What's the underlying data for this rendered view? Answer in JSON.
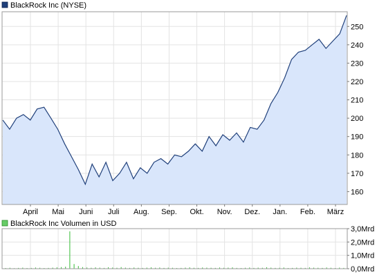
{
  "colors": {
    "price_line": "#1f3f7a",
    "price_fill": "#d9e6fb",
    "volume_bar": "#33bb33",
    "grid": "#e3e3e3",
    "frame": "#9a9a9a"
  },
  "chart_data": [
    {
      "type": "area",
      "title": "BlackRock Inc (NYSE)",
      "legend_icon": "navy-square-icon",
      "legend_position": "top-left",
      "xlabel": "",
      "ylabel": "",
      "x_tick_labels": [
        "April",
        "Mai",
        "Juni",
        "Juli",
        "Aug.",
        "Sep.",
        "Okt.",
        "Nov.",
        "Dez.",
        "Jan.",
        "Feb.",
        "März"
      ],
      "y_ticks": [
        160,
        170,
        180,
        190,
        200,
        210,
        220,
        230,
        240,
        250
      ],
      "y_tick_labels": [
        "160",
        "170",
        "180",
        "190",
        "200",
        "210",
        "220",
        "230",
        "240",
        "250"
      ],
      "ylim": [
        153,
        258
      ],
      "grid": true,
      "x": [
        "Mär",
        "Mär",
        "Mär",
        "Apr",
        "Apr",
        "Apr",
        "Apr",
        "Mai",
        "Mai",
        "Mai",
        "Mai",
        "Jun",
        "Jun",
        "Jun",
        "Jun",
        "Jul",
        "Jul",
        "Jul",
        "Jul",
        "Jul",
        "Aug",
        "Aug",
        "Aug",
        "Aug",
        "Sep",
        "Sep",
        "Sep",
        "Sep",
        "Okt",
        "Okt",
        "Okt",
        "Okt",
        "Nov",
        "Nov",
        "Nov",
        "Nov",
        "Dez",
        "Dez",
        "Dez",
        "Dez",
        "Jan",
        "Jan",
        "Jan",
        "Jan",
        "Feb",
        "Feb",
        "Feb",
        "Feb",
        "Mär",
        "Mär",
        "Mär"
      ],
      "series": [
        {
          "values": [
            199,
            194,
            200,
            202,
            199,
            205,
            206,
            200,
            194,
            186,
            179,
            172,
            164,
            175,
            168,
            176,
            166,
            170,
            176,
            167,
            173,
            170,
            176,
            178,
            175,
            180,
            179,
            182,
            186,
            182,
            190,
            185,
            191,
            188,
            192,
            187,
            195,
            194,
            199,
            208,
            214,
            222,
            232,
            236,
            237,
            240,
            243,
            238,
            242,
            246,
            256
          ]
        }
      ]
    },
    {
      "type": "bar",
      "title": "BlackRock Inc Volumen in USD",
      "legend_icon": "green-square-icon",
      "legend_position": "top-left",
      "y_ticks": [
        0,
        1,
        2,
        3
      ],
      "y_tick_labels": [
        "0,0Mrd",
        "1,0Mrd",
        "2,0Mrd",
        "3,0Mrd"
      ],
      "ylim": [
        0,
        3
      ],
      "grid": true,
      "series": [
        {
          "values": [
            0.05,
            0.07,
            0.04,
            0.06,
            0.08,
            0.05,
            0.06,
            0.09,
            0.07,
            0.05,
            0.06,
            0.08,
            0.1,
            0.12,
            0.15,
            2.8,
            0.35,
            0.2,
            0.12,
            0.09,
            0.07,
            0.1,
            0.08,
            0.06,
            0.11,
            0.09,
            0.07,
            0.12,
            0.08,
            0.06,
            0.09,
            0.07,
            0.06,
            0.08,
            0.1,
            0.07,
            0.09,
            0.06,
            0.08,
            0.07,
            0.05,
            0.06,
            0.08,
            0.1,
            0.07,
            0.06,
            0.09,
            0.08,
            0.07,
            0.06,
            0.09,
            0.07,
            0.08,
            0.1,
            0.06,
            0.05,
            0.07,
            0.09,
            0.06,
            0.08,
            0.07,
            0.11,
            0.08,
            0.06,
            0.07,
            0.09,
            0.05,
            0.06,
            0.08,
            0.07,
            0.06,
            0.1,
            0.08,
            0.07,
            0.06,
            0.09,
            0.07,
            0.05,
            0.08,
            0.06
          ]
        }
      ]
    }
  ]
}
